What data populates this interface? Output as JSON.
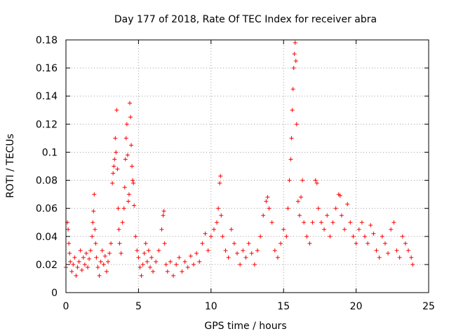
{
  "chart_data": {
    "type": "scatter",
    "title": "Day 177 of 2018, Rate Of TEC Index for receiver abra",
    "xlabel": "GPS time / hours",
    "ylabel": "ROTI / TECUs",
    "xlim": [
      0,
      25
    ],
    "ylim": [
      0,
      0.18
    ],
    "xticks": [
      0,
      5,
      10,
      15,
      20,
      25
    ],
    "xtick_labels": [
      "0",
      "5",
      "10",
      "15",
      "20",
      "25"
    ],
    "yticks": [
      0,
      0.02,
      0.04,
      0.06,
      0.08,
      0.1,
      0.12,
      0.14,
      0.16,
      0.18
    ],
    "ytick_labels": [
      "0",
      "0.02",
      "0.04",
      "0.06",
      "0.08",
      "0.1",
      "0.12",
      "0.14",
      "0.16",
      "0.18"
    ],
    "grid": true,
    "marker": "+",
    "color": "#ff0000",
    "series": [
      {
        "points": [
          [
            0.0,
            0.018
          ],
          [
            0.1,
            0.05
          ],
          [
            0.15,
            0.045
          ],
          [
            0.2,
            0.035
          ],
          [
            0.25,
            0.028
          ],
          [
            0.3,
            0.022
          ],
          [
            0.4,
            0.015
          ],
          [
            0.5,
            0.02
          ],
          [
            0.6,
            0.025
          ],
          [
            0.7,
            0.012
          ],
          [
            0.8,
            0.018
          ],
          [
            0.9,
            0.022
          ],
          [
            1.0,
            0.03
          ],
          [
            1.1,
            0.016
          ],
          [
            1.2,
            0.025
          ],
          [
            1.3,
            0.02
          ],
          [
            1.4,
            0.028
          ],
          [
            1.5,
            0.018
          ],
          [
            1.6,
            0.024
          ],
          [
            1.7,
            0.03
          ],
          [
            1.8,
            0.04
          ],
          [
            1.85,
            0.05
          ],
          [
            1.9,
            0.058
          ],
          [
            1.95,
            0.07
          ],
          [
            2.0,
            0.045
          ],
          [
            2.05,
            0.035
          ],
          [
            2.1,
            0.025
          ],
          [
            2.2,
            0.018
          ],
          [
            2.3,
            0.012
          ],
          [
            2.4,
            0.022
          ],
          [
            2.5,
            0.03
          ],
          [
            2.6,
            0.02
          ],
          [
            2.7,
            0.026
          ],
          [
            2.8,
            0.015
          ],
          [
            2.9,
            0.022
          ],
          [
            3.0,
            0.028
          ],
          [
            3.1,
            0.035
          ],
          [
            3.2,
            0.078
          ],
          [
            3.25,
            0.085
          ],
          [
            3.3,
            0.09
          ],
          [
            3.35,
            0.095
          ],
          [
            3.4,
            0.11
          ],
          [
            3.45,
            0.1
          ],
          [
            3.5,
            0.13
          ],
          [
            3.55,
            0.088
          ],
          [
            3.6,
            0.06
          ],
          [
            3.65,
            0.045
          ],
          [
            3.7,
            0.035
          ],
          [
            3.8,
            0.028
          ],
          [
            3.9,
            0.05
          ],
          [
            4.0,
            0.06
          ],
          [
            4.05,
            0.075
          ],
          [
            4.1,
            0.095
          ],
          [
            4.15,
            0.11
          ],
          [
            4.2,
            0.12
          ],
          [
            4.25,
            0.098
          ],
          [
            4.3,
            0.065
          ],
          [
            4.35,
            0.07
          ],
          [
            4.4,
            0.135
          ],
          [
            4.45,
            0.125
          ],
          [
            4.5,
            0.105
          ],
          [
            4.55,
            0.09
          ],
          [
            4.6,
            0.08
          ],
          [
            4.65,
            0.078
          ],
          [
            4.7,
            0.062
          ],
          [
            4.8,
            0.04
          ],
          [
            4.9,
            0.03
          ],
          [
            5.0,
            0.025
          ],
          [
            5.1,
            0.018
          ],
          [
            5.2,
            0.012
          ],
          [
            5.3,
            0.02
          ],
          [
            5.4,
            0.028
          ],
          [
            5.5,
            0.035
          ],
          [
            5.6,
            0.022
          ],
          [
            5.7,
            0.03
          ],
          [
            5.8,
            0.018
          ],
          [
            5.9,
            0.025
          ],
          [
            6.0,
            0.015
          ],
          [
            6.2,
            0.022
          ],
          [
            6.4,
            0.03
          ],
          [
            6.6,
            0.045
          ],
          [
            6.7,
            0.055
          ],
          [
            6.75,
            0.058
          ],
          [
            6.8,
            0.035
          ],
          [
            6.9,
            0.02
          ],
          [
            7.0,
            0.015
          ],
          [
            7.2,
            0.022
          ],
          [
            7.4,
            0.012
          ],
          [
            7.6,
            0.02
          ],
          [
            7.8,
            0.025
          ],
          [
            8.0,
            0.015
          ],
          [
            8.2,
            0.022
          ],
          [
            8.4,
            0.018
          ],
          [
            8.6,
            0.026
          ],
          [
            8.8,
            0.02
          ],
          [
            9.0,
            0.028
          ],
          [
            9.2,
            0.022
          ],
          [
            9.4,
            0.035
          ],
          [
            9.6,
            0.042
          ],
          [
            9.8,
            0.03
          ],
          [
            10.0,
            0.04
          ],
          [
            10.2,
            0.045
          ],
          [
            10.4,
            0.05
          ],
          [
            10.5,
            0.06
          ],
          [
            10.6,
            0.078
          ],
          [
            10.65,
            0.083
          ],
          [
            10.7,
            0.055
          ],
          [
            10.8,
            0.04
          ],
          [
            11.0,
            0.03
          ],
          [
            11.2,
            0.025
          ],
          [
            11.4,
            0.045
          ],
          [
            11.6,
            0.035
          ],
          [
            11.8,
            0.028
          ],
          [
            12.0,
            0.02
          ],
          [
            12.2,
            0.03
          ],
          [
            12.4,
            0.025
          ],
          [
            12.6,
            0.035
          ],
          [
            12.8,
            0.028
          ],
          [
            13.0,
            0.02
          ],
          [
            13.2,
            0.03
          ],
          [
            13.4,
            0.04
          ],
          [
            13.6,
            0.055
          ],
          [
            13.8,
            0.065
          ],
          [
            13.9,
            0.068
          ],
          [
            14.0,
            0.06
          ],
          [
            14.2,
            0.05
          ],
          [
            14.4,
            0.03
          ],
          [
            14.6,
            0.025
          ],
          [
            14.8,
            0.035
          ],
          [
            15.0,
            0.045
          ],
          [
            15.2,
            0.04
          ],
          [
            15.3,
            0.06
          ],
          [
            15.4,
            0.08
          ],
          [
            15.5,
            0.095
          ],
          [
            15.55,
            0.11
          ],
          [
            15.6,
            0.13
          ],
          [
            15.65,
            0.145
          ],
          [
            15.7,
            0.16
          ],
          [
            15.75,
            0.17
          ],
          [
            15.8,
            0.178
          ],
          [
            15.85,
            0.165
          ],
          [
            15.9,
            0.12
          ],
          [
            16.0,
            0.065
          ],
          [
            16.1,
            0.055
          ],
          [
            16.2,
            0.068
          ],
          [
            16.3,
            0.08
          ],
          [
            16.4,
            0.05
          ],
          [
            16.6,
            0.04
          ],
          [
            16.8,
            0.035
          ],
          [
            17.0,
            0.05
          ],
          [
            17.2,
            0.08
          ],
          [
            17.3,
            0.078
          ],
          [
            17.4,
            0.06
          ],
          [
            17.6,
            0.05
          ],
          [
            17.8,
            0.045
          ],
          [
            18.0,
            0.055
          ],
          [
            18.2,
            0.04
          ],
          [
            18.4,
            0.05
          ],
          [
            18.6,
            0.06
          ],
          [
            18.8,
            0.07
          ],
          [
            18.9,
            0.069
          ],
          [
            19.0,
            0.055
          ],
          [
            19.2,
            0.045
          ],
          [
            19.4,
            0.063
          ],
          [
            19.6,
            0.05
          ],
          [
            19.8,
            0.04
          ],
          [
            20.0,
            0.035
          ],
          [
            20.2,
            0.045
          ],
          [
            20.4,
            0.05
          ],
          [
            20.6,
            0.04
          ],
          [
            20.8,
            0.035
          ],
          [
            21.0,
            0.048
          ],
          [
            21.2,
            0.042
          ],
          [
            21.4,
            0.03
          ],
          [
            21.6,
            0.025
          ],
          [
            21.8,
            0.04
          ],
          [
            22.0,
            0.035
          ],
          [
            22.2,
            0.028
          ],
          [
            22.4,
            0.045
          ],
          [
            22.6,
            0.05
          ],
          [
            22.8,
            0.03
          ],
          [
            23.0,
            0.025
          ],
          [
            23.2,
            0.04
          ],
          [
            23.4,
            0.035
          ],
          [
            23.6,
            0.03
          ],
          [
            23.8,
            0.025
          ],
          [
            23.9,
            0.02
          ]
        ]
      }
    ]
  }
}
